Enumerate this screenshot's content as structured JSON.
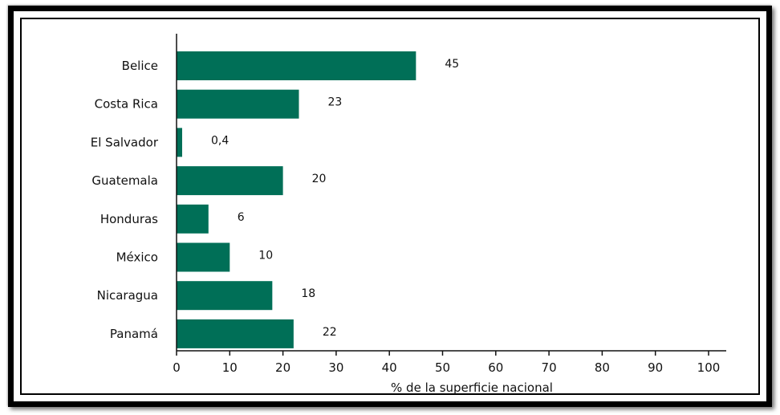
{
  "chart_data": {
    "type": "bar",
    "orientation": "horizontal",
    "title": "",
    "xlabel": "% de la superficie nacional",
    "ylabel": "",
    "categories": [
      "Belice",
      "Costa Rica",
      "El Salvador",
      "Guatemala",
      "Honduras",
      "México",
      "Nicaragua",
      "Panamá"
    ],
    "values": [
      45,
      23,
      0.4,
      20,
      6,
      10,
      18,
      22
    ],
    "value_labels": [
      "45",
      "23",
      "0,4",
      "20",
      "6",
      "10",
      "18",
      "22"
    ],
    "xlim": [
      0,
      100
    ],
    "xticks": [
      0,
      10,
      20,
      30,
      40,
      50,
      60,
      70,
      80,
      90,
      100
    ],
    "xtick_labels": [
      "0",
      "10",
      "20",
      "30",
      "40",
      "50",
      "60",
      "70",
      "80",
      "90",
      "100"
    ],
    "grid": false,
    "legend": "none",
    "bar_color": "#006f57"
  }
}
